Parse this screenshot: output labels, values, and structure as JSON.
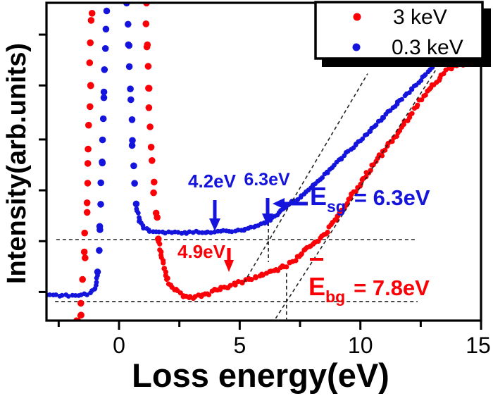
{
  "chart_data": {
    "type": "scatter",
    "title": "",
    "xlabel": "Loss energy(eV)",
    "ylabel": "Intensity(arb.units)",
    "xlim": [
      -3,
      15
    ],
    "ylim": [
      0,
      100
    ],
    "grid": false,
    "legend_position": "top-right",
    "x_ticks_major": [
      0,
      5,
      10,
      15
    ],
    "x_ticks_minor": [
      -2.5,
      2.5,
      7.5,
      12.5
    ],
    "y_ticks_unlabeled": [
      9,
      25,
      41,
      57,
      74,
      90
    ],
    "legend": {
      "entries": [
        {
          "label": "3 keV",
          "color": "#fb0006"
        },
        {
          "label": "0.3 keV",
          "color": "#1414dd"
        }
      ]
    },
    "series": [
      {
        "name": "3 keV",
        "color": "#fb0006",
        "segments": [
          [
            [
              -1.78,
              0.0
            ],
            [
              -1.69,
              0.7
            ],
            [
              -1.6,
              2.2
            ],
            [
              -1.55,
              6.0
            ],
            [
              -1.49,
              12.6
            ],
            [
              -1.43,
              21.1
            ],
            [
              -1.34,
              36.6
            ],
            [
              -1.25,
              54.3
            ],
            [
              -1.2,
              74.3
            ],
            [
              -1.14,
              96.5
            ],
            [
              -1.11,
              100
            ]
          ],
          [
            [
              1.11,
              100
            ],
            [
              1.17,
              86.5
            ],
            [
              1.23,
              73.2
            ],
            [
              1.28,
              61.0
            ],
            [
              1.37,
              49.9
            ],
            [
              1.46,
              40.6
            ],
            [
              1.55,
              32.2
            ],
            [
              1.63,
              25.5
            ],
            [
              1.75,
              20.6
            ],
            [
              1.87,
              16.0
            ],
            [
              2.01,
              12.9
            ],
            [
              2.19,
              10.9
            ],
            [
              2.42,
              9.3
            ],
            [
              2.66,
              8.0
            ],
            [
              2.92,
              7.5
            ],
            [
              3.18,
              7.3
            ],
            [
              3.44,
              7.8
            ],
            [
              3.71,
              8.6
            ],
            [
              3.97,
              9.5
            ],
            [
              4.23,
              10.2
            ],
            [
              4.52,
              10.9
            ],
            [
              4.81,
              11.5
            ],
            [
              5.11,
              12.2
            ],
            [
              5.4,
              12.9
            ],
            [
              5.69,
              13.7
            ],
            [
              5.98,
              14.4
            ],
            [
              6.27,
              15.1
            ],
            [
              6.57,
              15.7
            ],
            [
              6.86,
              16.9
            ],
            [
              7.09,
              18.0
            ],
            [
              7.29,
              19.1
            ],
            [
              7.5,
              20.6
            ],
            [
              7.7,
              22.0
            ],
            [
              7.91,
              23.5
            ],
            [
              8.14,
              24.8
            ],
            [
              8.37,
              26.4
            ],
            [
              8.61,
              28.2
            ],
            [
              8.84,
              30.4
            ],
            [
              9.1,
              33.0
            ],
            [
              9.37,
              36.1
            ],
            [
              9.66,
              39.5
            ],
            [
              9.98,
              43.0
            ],
            [
              10.33,
              46.8
            ],
            [
              10.71,
              50.8
            ],
            [
              11.09,
              54.5
            ],
            [
              11.47,
              58.5
            ],
            [
              11.85,
              62.5
            ],
            [
              12.23,
              66.5
            ],
            [
              12.61,
              70.3
            ],
            [
              12.98,
              73.8
            ],
            [
              13.36,
              77.2
            ],
            [
              13.74,
              79.4
            ],
            [
              14.12,
              80.6
            ],
            [
              14.5,
              81.2
            ],
            [
              14.82,
              81.4
            ]
          ]
        ]
      },
      {
        "name": "0.3 keV",
        "color": "#1414dd",
        "segments": [
          [
            [
              -3.0,
              7.8
            ],
            [
              -1.58,
              8.0
            ],
            [
              -1.2,
              8.6
            ],
            [
              -0.99,
              10.2
            ],
            [
              -0.88,
              15.5
            ],
            [
              -0.79,
              29.9
            ],
            [
              -0.7,
              49.9
            ],
            [
              -0.61,
              72.1
            ],
            [
              -0.53,
              97.6
            ],
            [
              -0.5,
              100
            ]
          ],
          [
            [
              0.32,
              100
            ],
            [
              0.41,
              86.5
            ],
            [
              0.5,
              69.8
            ],
            [
              0.55,
              55.4
            ],
            [
              0.64,
              43.2
            ],
            [
              0.73,
              35.5
            ],
            [
              0.85,
              31.3
            ],
            [
              1.02,
              29.3
            ],
            [
              1.28,
              28.2
            ],
            [
              1.93,
              27.7
            ],
            [
              2.8,
              27.7
            ],
            [
              3.68,
              27.9
            ],
            [
              4.55,
              28.2
            ],
            [
              5.22,
              28.6
            ],
            [
              5.66,
              29.5
            ],
            [
              6.04,
              30.8
            ],
            [
              6.33,
              32.2
            ],
            [
              6.62,
              33.7
            ],
            [
              6.92,
              35.9
            ],
            [
              7.18,
              37.3
            ],
            [
              7.56,
              39.0
            ],
            [
              8.05,
              42.4
            ],
            [
              8.64,
              46.8
            ],
            [
              9.22,
              51.2
            ],
            [
              9.8,
              55.4
            ],
            [
              10.39,
              59.6
            ],
            [
              10.97,
              64.1
            ],
            [
              11.55,
              68.5
            ],
            [
              12.14,
              72.9
            ],
            [
              12.63,
              76.9
            ],
            [
              13.04,
              80.5
            ]
          ]
        ]
      }
    ],
    "guides": [
      {
        "name": "baseline-blue-dashed",
        "layer": "under",
        "x1": -2.6,
        "y1": 25.5,
        "x2": 12.34,
        "y2": 25.5
      },
      {
        "name": "baseline-red-dashed",
        "layer": "under",
        "x1": -2.65,
        "y1": 6.0,
        "x2": 12.37,
        "y2": 6.0
      },
      {
        "name": "onset-marker-blue",
        "layer": "under",
        "x1": 6.19,
        "y1": 34.8,
        "x2": 6.19,
        "y2": 18.4
      },
      {
        "name": "onset-marker-red",
        "layer": "under",
        "x1": 6.94,
        "y1": 14.9,
        "x2": 6.94,
        "y2": 0.4
      },
      {
        "name": "linear-fit-blue",
        "layer": "over",
        "x1": 5.18,
        "y1": 12.0,
        "x2": 10.3,
        "y2": 77.7
      },
      {
        "name": "linear-fit-red",
        "layer": "over",
        "x1": 6.49,
        "y1": 0.7,
        "x2": 13.11,
        "y2": 78.7
      }
    ]
  },
  "labels": {
    "xlabel": "Loss energy(eV)",
    "ylabel": "Intensity(arb.units)"
  },
  "legend": {
    "entry1": "3 keV",
    "entry2": "0.3 keV"
  },
  "annotations": {
    "peak_blue_1": "4.2eV",
    "peak_blue_2": "6.3eV",
    "peak_red": "4.9eV",
    "esg": {
      "main": "E",
      "sub": "sg",
      "rest": "= 6.3eV"
    },
    "ebg": {
      "main": "E",
      "sub": "bg",
      "rest": "= 7.8eV"
    }
  },
  "colors": {
    "red": "#fb0006",
    "blue": "#1414dd",
    "axis": "#000000",
    "dashed": "#222222"
  }
}
